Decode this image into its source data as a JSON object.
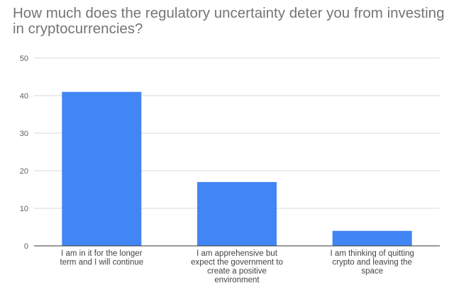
{
  "chart_data": {
    "type": "bar",
    "title": "How much does the regulatory uncertainty deter you from investing in cryptocurrencies?",
    "categories": [
      [
        "I am in it for the longer",
        "term and I will continue"
      ],
      [
        "I am apprehensive but",
        "expect the government to",
        "create a positive",
        "environment"
      ],
      [
        "I am thinking of quitting",
        "crypto and leaving the",
        "space"
      ]
    ],
    "values": [
      41,
      17,
      4
    ],
    "ylim": [
      0,
      50
    ],
    "yticks": [
      0,
      10,
      20,
      30,
      40,
      50
    ],
    "grid": true,
    "bar_color": "#4285f4",
    "grid_color": "#d9d9d9",
    "axis_color": "#333333"
  }
}
